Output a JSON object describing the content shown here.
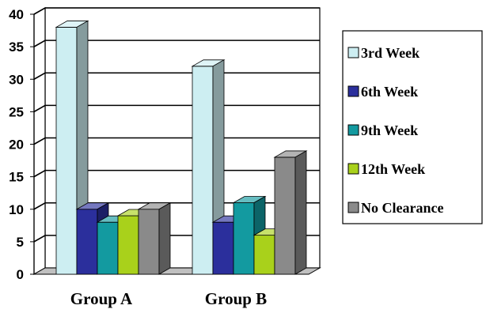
{
  "chart_data": {
    "type": "bar",
    "style": "3d-clustered",
    "categories": [
      "Group A",
      "Group B"
    ],
    "series": [
      {
        "name": "3rd Week",
        "color": "#cdeef2",
        "values": [
          38,
          32
        ]
      },
      {
        "name": "6th Week",
        "color": "#2b2f9c",
        "values": [
          10,
          8
        ]
      },
      {
        "name": "9th Week",
        "color": "#139aa0",
        "values": [
          8,
          11
        ]
      },
      {
        "name": "12th Week",
        "color": "#a9d11b",
        "values": [
          9,
          6
        ]
      },
      {
        "name": "No Clearance",
        "color": "#8a8a8a",
        "values": [
          10,
          18
        ]
      }
    ],
    "ylim": [
      0,
      40
    ],
    "yticks": [
      0,
      5,
      10,
      15,
      20,
      25,
      30,
      35,
      40
    ],
    "grid": true,
    "legend_position": "right"
  }
}
